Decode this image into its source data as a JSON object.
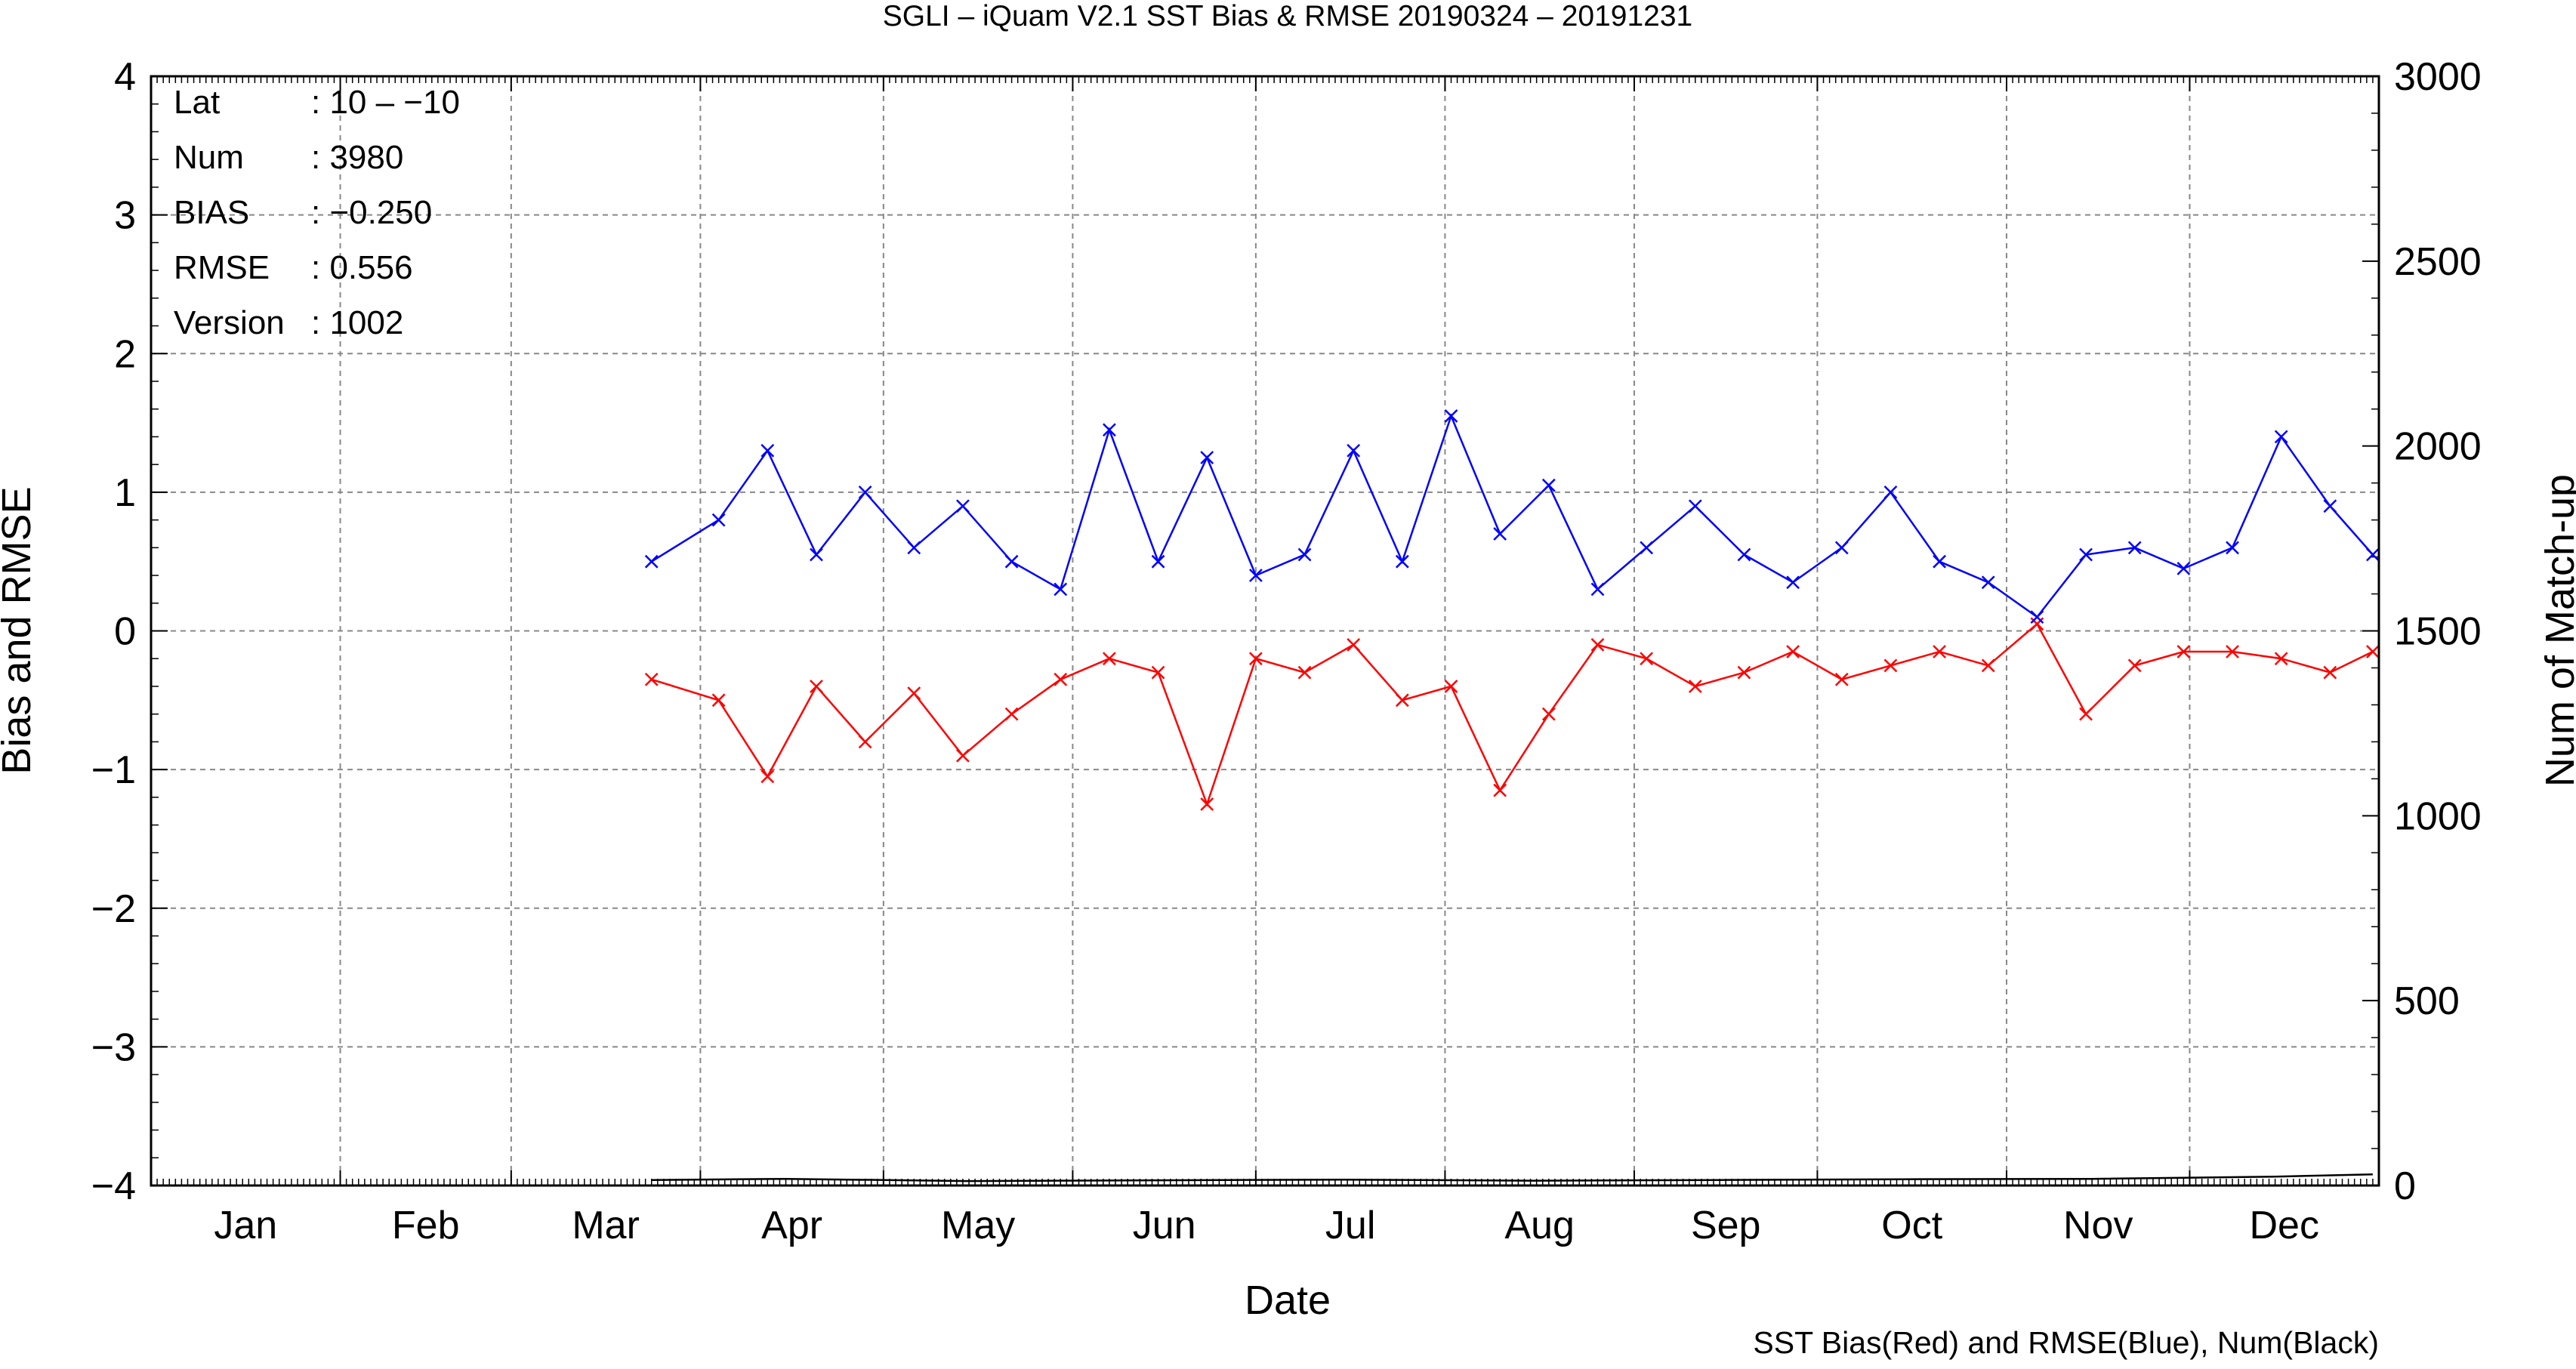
{
  "chart_data": {
    "type": "line",
    "title": "SGLI – iQuam V2.1 SST Bias & RMSE 20190324 – 20191231",
    "xlabel": "Date",
    "ylabel_left": "Bias and RMSE",
    "ylabel_right": "Num of Match-up",
    "footer": "SST Bias(Red) and RMSE(Blue), Num(Black)",
    "x_tick_labels": [
      "Jan",
      "Feb",
      "Mar",
      "Apr",
      "May",
      "Jun",
      "Jul",
      "Aug",
      "Sep",
      "Oct",
      "Nov",
      "Dec"
    ],
    "y_left_ticks": [
      "4",
      "3",
      "2",
      "1",
      "0",
      "−1",
      "−2",
      "−3",
      "−4"
    ],
    "y_right_ticks": [
      "3000",
      "2500",
      "2000",
      "1500",
      "1000",
      "500",
      "0"
    ],
    "ylim_left": [
      -4,
      4
    ],
    "ylim_right": [
      0,
      3000
    ],
    "xlim": [
      "2019-01-01",
      "2019-12-31"
    ],
    "grid": true,
    "stats": [
      {
        "key": "Lat",
        "value": ": 10 – −10"
      },
      {
        "key": "Num",
        "value": ": 3980"
      },
      {
        "key": "BIAS",
        "value": ": −0.250"
      },
      {
        "key": "RMSE",
        "value": ": 0.556"
      },
      {
        "key": "Version",
        "value": ": 1002"
      }
    ],
    "series": [
      {
        "color": "#ff0000",
        "axis": "left",
        "marker": "x",
        "x": [
          "2019-03-24",
          "2019-04-04",
          "2019-04-12",
          "2019-04-20",
          "2019-04-28",
          "2019-05-06",
          "2019-05-14",
          "2019-05-22",
          "2019-05-30",
          "2019-06-07",
          "2019-06-15",
          "2019-06-23",
          "2019-07-01",
          "2019-07-09",
          "2019-07-17",
          "2019-07-25",
          "2019-08-02",
          "2019-08-10",
          "2019-08-18",
          "2019-08-26",
          "2019-09-03",
          "2019-09-11",
          "2019-09-19",
          "2019-09-27",
          "2019-10-05",
          "2019-10-13",
          "2019-10-21",
          "2019-10-29",
          "2019-11-06",
          "2019-11-14",
          "2019-11-22",
          "2019-11-30",
          "2019-12-08",
          "2019-12-16",
          "2019-12-24",
          "2019-12-31"
        ],
        "y": [
          -0.35,
          -0.5,
          -1.05,
          -0.4,
          -0.8,
          -0.45,
          -0.9,
          -0.6,
          -0.35,
          -0.2,
          -0.3,
          -1.25,
          -0.2,
          -0.3,
          -0.1,
          -0.5,
          -0.4,
          -1.15,
          -0.6,
          -0.1,
          -0.2,
          -0.4,
          -0.3,
          -0.15,
          -0.35,
          -0.25,
          -0.15,
          -0.25,
          0.05,
          -0.6,
          -0.25,
          -0.15,
          -0.15,
          -0.2,
          -0.3,
          -0.15
        ]
      },
      {
        "color": "#0000ff",
        "axis": "left",
        "marker": "x",
        "x": [
          "2019-03-24",
          "2019-04-04",
          "2019-04-12",
          "2019-04-20",
          "2019-04-28",
          "2019-05-06",
          "2019-05-14",
          "2019-05-22",
          "2019-05-30",
          "2019-06-07",
          "2019-06-15",
          "2019-06-23",
          "2019-07-01",
          "2019-07-09",
          "2019-07-17",
          "2019-07-25",
          "2019-08-02",
          "2019-08-10",
          "2019-08-18",
          "2019-08-26",
          "2019-09-03",
          "2019-09-11",
          "2019-09-19",
          "2019-09-27",
          "2019-10-05",
          "2019-10-13",
          "2019-10-21",
          "2019-10-29",
          "2019-11-06",
          "2019-11-14",
          "2019-11-22",
          "2019-11-30",
          "2019-12-08",
          "2019-12-16",
          "2019-12-24",
          "2019-12-31"
        ],
        "y": [
          0.5,
          0.8,
          1.3,
          0.55,
          1.0,
          0.6,
          0.9,
          0.5,
          0.3,
          1.45,
          0.5,
          1.25,
          0.4,
          0.55,
          1.3,
          0.5,
          1.55,
          0.7,
          1.05,
          0.3,
          0.6,
          0.9,
          0.55,
          0.35,
          0.6,
          1.0,
          0.5,
          0.35,
          0.1,
          0.55,
          0.6,
          0.45,
          0.6,
          1.4,
          0.9,
          0.55
        ]
      },
      {
        "color": "#000000",
        "axis": "right",
        "marker": "none",
        "x": [
          "2019-03-24",
          "2019-04-15",
          "2019-05-15",
          "2019-06-15",
          "2019-07-15",
          "2019-08-15",
          "2019-09-15",
          "2019-10-15",
          "2019-11-15",
          "2019-12-15",
          "2019-12-31"
        ],
        "y": [
          15,
          18,
          12,
          14,
          16,
          13,
          15,
          17,
          18,
          24,
          30
        ]
      }
    ]
  }
}
